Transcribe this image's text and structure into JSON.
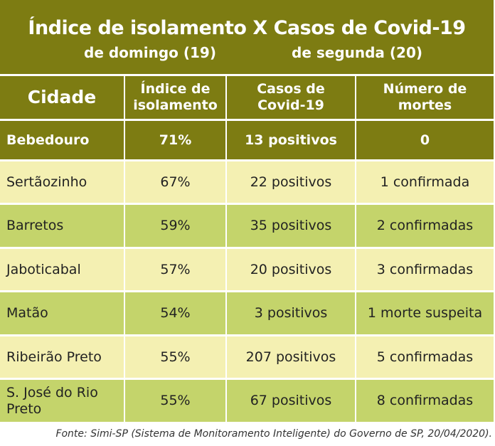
{
  "header": {
    "title": "Índice de isolamento X Casos de Covid-19",
    "subtitle_left": "de domingo (19)",
    "subtitle_right": "de segunda (20)"
  },
  "table": {
    "columns": [
      "Cidade",
      "Índice de\nisolamento",
      "Casos de\nCovid-19",
      "Número de\nmortes"
    ],
    "rows": [
      [
        "Bebedouro",
        "71%",
        "13 positivos",
        "0"
      ],
      [
        "Sertãozinho",
        "67%",
        "22 positivos",
        "1 confirmada"
      ],
      [
        "Barretos",
        "59%",
        "35 positivos",
        "2 confirmadas"
      ],
      [
        "Jaboticabal",
        "57%",
        "20 positivos",
        "3 confirmadas"
      ],
      [
        "Matão",
        "54%",
        "3 positivos",
        "1 morte suspeita"
      ],
      [
        "Ribeirão Preto",
        "55%",
        "207 positivos",
        "5 confirmadas"
      ],
      [
        "S. José do Rio Preto",
        "55%",
        "67 positivos",
        "8 confirmadas"
      ]
    ]
  },
  "footnote": "Fonte: Simi-SP (Sistema de Monitoramento Inteligente) do Governo de SP, 20/04/2020)."
}
